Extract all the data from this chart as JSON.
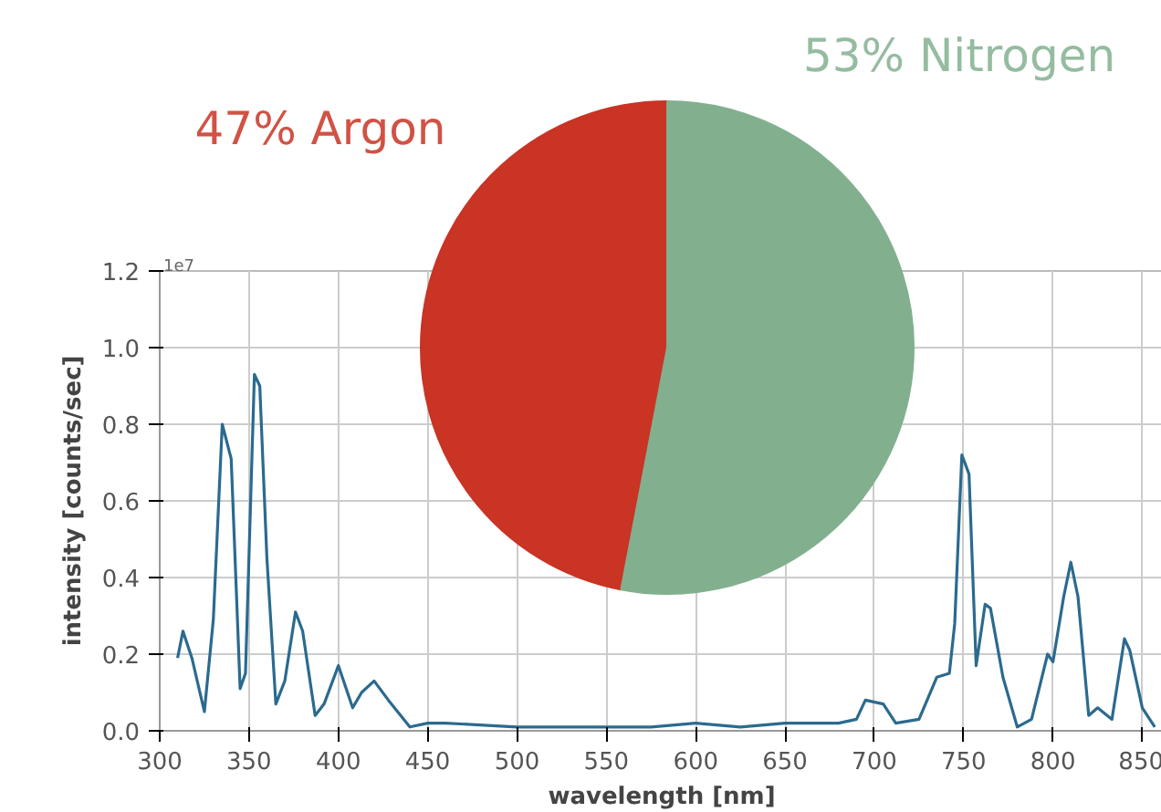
{
  "chart_data": [
    {
      "type": "line",
      "xlabel": "wavelength [nm]",
      "ylabel": "intensity [counts/sec]",
      "annotations": [
        "1e7"
      ],
      "x": [
        310,
        313,
        318,
        325,
        330,
        335,
        340,
        345,
        348,
        353,
        356,
        360,
        365,
        370,
        376,
        380,
        387,
        392,
        400,
        408,
        413,
        420,
        428,
        440,
        450,
        460,
        500,
        550,
        575,
        600,
        625,
        650,
        680,
        690,
        695,
        705,
        712,
        725,
        735,
        742,
        745,
        749,
        753,
        757,
        762,
        765,
        772,
        780,
        788,
        797,
        800,
        806,
        810,
        814,
        820,
        825,
        833,
        840,
        843,
        850,
        857
      ],
      "series": [
        {
          "color": "#2b6a8f",
          "values": [
            0.19,
            0.26,
            0.19,
            0.05,
            0.29,
            0.8,
            0.71,
            0.11,
            0.15,
            0.93,
            0.9,
            0.45,
            0.07,
            0.13,
            0.31,
            0.26,
            0.04,
            0.07,
            0.17,
            0.06,
            0.1,
            0.13,
            0.08,
            0.01,
            0.02,
            0.02,
            0.01,
            0.01,
            0.01,
            0.02,
            0.01,
            0.02,
            0.02,
            0.03,
            0.08,
            0.07,
            0.02,
            0.03,
            0.14,
            0.15,
            0.28,
            0.72,
            0.67,
            0.17,
            0.33,
            0.32,
            0.14,
            0.01,
            0.03,
            0.2,
            0.18,
            0.35,
            0.44,
            0.35,
            0.04,
            0.06,
            0.03,
            0.24,
            0.21,
            0.06,
            0.01
          ]
        }
      ],
      "xlim": [
        300,
        862
      ],
      "xticks": [
        300,
        350,
        400,
        450,
        500,
        550,
        600,
        650,
        700,
        750,
        800,
        850
      ],
      "ylim": [
        0,
        1.2
      ],
      "yticks": [
        {
          "value": 0,
          "label": "0.0"
        },
        {
          "value": 0.2,
          "label": "0.2"
        },
        {
          "value": 0.4,
          "label": "0.4"
        },
        {
          "value": 0.6,
          "label": "0.6"
        },
        {
          "value": 0.8,
          "label": "0.8"
        },
        {
          "value": 1.0,
          "label": "1.0"
        },
        {
          "value": 1.2,
          "label": "1.2"
        }
      ],
      "grid": true,
      "marker": "none",
      "line_style": "solid"
    },
    {
      "type": "pie",
      "categories": [
        "47% Argon",
        "53% Nitrogen"
      ],
      "values": [
        47,
        53
      ],
      "colors": [
        "#c93425",
        "#82b08f"
      ]
    }
  ]
}
